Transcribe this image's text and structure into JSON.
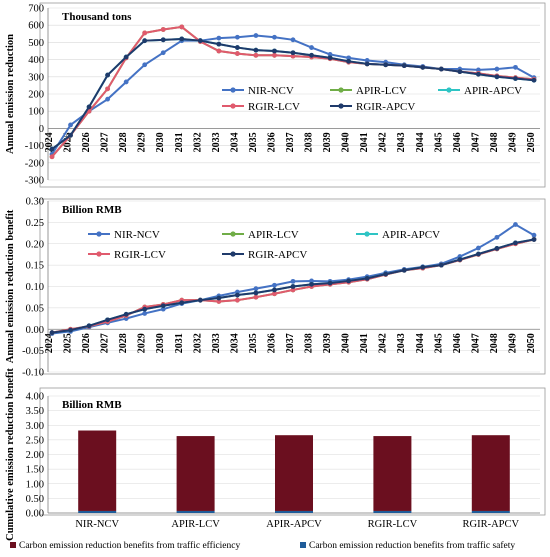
{
  "charts": [
    {
      "type": "line",
      "unit_label": "Thousand tons",
      "ylabel": "Annual emission reduction",
      "ylim": [
        -300,
        700
      ],
      "yticks": [
        -300,
        -200,
        -100,
        0,
        100,
        200,
        300,
        400,
        500,
        600,
        700
      ],
      "ytick_labels": [
        "-300",
        "-200",
        "-100",
        "0",
        "100",
        "200",
        "300",
        "400",
        "500",
        "600",
        "700"
      ],
      "x": [
        2024,
        2025,
        2026,
        2027,
        2028,
        2029,
        2030,
        2031,
        2032,
        2033,
        2034,
        2035,
        2036,
        2037,
        2038,
        2039,
        2040,
        2041,
        2042,
        2043,
        2044,
        2045,
        2046,
        2047,
        2048,
        2049,
        2050
      ],
      "x_labels": [
        "2024",
        "2025",
        "2026",
        "2027",
        "2028",
        "2029",
        "2030",
        "2031",
        "2032",
        "2033",
        "2034",
        "2035",
        "2036",
        "2037",
        "2038",
        "2039",
        "2040",
        "2041",
        "2042",
        "2043",
        "2044",
        "2045",
        "2046",
        "2047",
        "2048",
        "2049",
        "2050"
      ],
      "legend_layout": "two-rows-right",
      "series": [
        {
          "name": "NIR-NCV",
          "color": "#4472C4",
          "marker": "circle",
          "values": [
            -150,
            20,
            100,
            170,
            270,
            370,
            440,
            510,
            510,
            525,
            530,
            540,
            530,
            515,
            470,
            430,
            410,
            395,
            385,
            370,
            360,
            345,
            345,
            340,
            345,
            355,
            295
          ]
        },
        {
          "name": "APIR-LCV",
          "color": "#70AD47",
          "marker": "circle",
          "values": [
            -165,
            -40,
            100,
            230,
            410,
            555,
            575,
            590,
            505,
            450,
            435,
            425,
            425,
            420,
            415,
            405,
            385,
            375,
            370,
            365,
            355,
            345,
            330,
            320,
            305,
            295,
            285
          ]
        },
        {
          "name": "APIR-APCV",
          "color": "#2EC4C4",
          "marker": "circle",
          "values": [
            -120,
            -40,
            125,
            310,
            415,
            510,
            515,
            520,
            510,
            490,
            470,
            455,
            450,
            440,
            425,
            410,
            390,
            375,
            370,
            365,
            355,
            345,
            330,
            315,
            300,
            290,
            280
          ]
        },
        {
          "name": "RGIR-LCV",
          "color": "#E05A6D",
          "marker": "circle",
          "values": [
            -165,
            -40,
            100,
            230,
            410,
            555,
            575,
            590,
            505,
            450,
            435,
            425,
            425,
            420,
            415,
            405,
            385,
            375,
            370,
            365,
            355,
            345,
            330,
            320,
            305,
            295,
            285
          ]
        },
        {
          "name": "RGIR-APCV",
          "color": "#1F3A6B",
          "marker": "circle",
          "values": [
            -120,
            -40,
            125,
            310,
            415,
            510,
            515,
            520,
            510,
            490,
            470,
            455,
            450,
            440,
            425,
            410,
            390,
            375,
            370,
            365,
            355,
            345,
            330,
            315,
            300,
            290,
            280
          ]
        }
      ]
    },
    {
      "type": "line",
      "unit_label": "Billion RMB",
      "ylabel": "Annual emission reduction benefit",
      "ylim": [
        -0.1,
        0.3
      ],
      "yticks": [
        -0.1,
        -0.05,
        0,
        0.05,
        0.1,
        0.15,
        0.2,
        0.25,
        0.3
      ],
      "ytick_labels": [
        "-0.10",
        "-0.05",
        "0.00",
        "0.05",
        "0.10",
        "0.15",
        "0.20",
        "0.25",
        "0.30"
      ],
      "x": [
        2024,
        2025,
        2026,
        2027,
        2028,
        2029,
        2030,
        2031,
        2032,
        2033,
        2034,
        2035,
        2036,
        2037,
        2038,
        2039,
        2040,
        2041,
        2042,
        2043,
        2044,
        2045,
        2046,
        2047,
        2048,
        2049,
        2050
      ],
      "x_labels": [
        "2024",
        "2025",
        "2026",
        "2027",
        "2028",
        "2029",
        "2030",
        "2031",
        "2032",
        "2033",
        "2034",
        "2035",
        "2036",
        "2037",
        "2038",
        "2039",
        "2040",
        "2041",
        "2042",
        "2043",
        "2044",
        "2045",
        "2046",
        "2047",
        "2048",
        "2049",
        "2050"
      ],
      "legend_layout": "two-rows-left",
      "series": [
        {
          "name": "NIR-NCV",
          "color": "#4472C4",
          "marker": "circle",
          "values": [
            -0.01,
            -0.005,
            0.005,
            0.015,
            0.025,
            0.037,
            0.047,
            0.06,
            0.068,
            0.078,
            0.087,
            0.095,
            0.103,
            0.112,
            0.113,
            0.112,
            0.116,
            0.123,
            0.132,
            0.14,
            0.146,
            0.153,
            0.17,
            0.19,
            0.215,
            0.245,
            0.22
          ]
        },
        {
          "name": "APIR-LCV",
          "color": "#70AD47",
          "marker": "circle",
          "values": [
            -0.008,
            0.0,
            0.007,
            0.018,
            0.032,
            0.052,
            0.058,
            0.068,
            0.068,
            0.065,
            0.068,
            0.075,
            0.083,
            0.092,
            0.1,
            0.105,
            0.11,
            0.117,
            0.128,
            0.138,
            0.143,
            0.15,
            0.162,
            0.175,
            0.188,
            0.2,
            0.21
          ]
        },
        {
          "name": "APIR-APCV",
          "color": "#2EC4C4",
          "marker": "circle",
          "values": [
            -0.008,
            -0.002,
            0.008,
            0.022,
            0.035,
            0.047,
            0.055,
            0.062,
            0.068,
            0.073,
            0.08,
            0.085,
            0.092,
            0.1,
            0.105,
            0.108,
            0.113,
            0.119,
            0.129,
            0.138,
            0.145,
            0.15,
            0.163,
            0.176,
            0.189,
            0.202,
            0.21
          ]
        },
        {
          "name": "RGIR-LCV",
          "color": "#E05A6D",
          "marker": "circle",
          "values": [
            -0.008,
            0.0,
            0.007,
            0.018,
            0.032,
            0.052,
            0.058,
            0.068,
            0.068,
            0.065,
            0.068,
            0.075,
            0.083,
            0.092,
            0.1,
            0.105,
            0.11,
            0.117,
            0.128,
            0.138,
            0.143,
            0.15,
            0.162,
            0.175,
            0.188,
            0.2,
            0.21
          ]
        },
        {
          "name": "RGIR-APCV",
          "color": "#1F3A6B",
          "marker": "circle",
          "values": [
            -0.008,
            -0.002,
            0.008,
            0.022,
            0.035,
            0.047,
            0.055,
            0.062,
            0.068,
            0.073,
            0.08,
            0.085,
            0.092,
            0.1,
            0.105,
            0.108,
            0.113,
            0.119,
            0.129,
            0.138,
            0.145,
            0.15,
            0.163,
            0.176,
            0.189,
            0.202,
            0.21
          ]
        }
      ]
    },
    {
      "type": "bar",
      "stacked": true,
      "unit_label": "Billion RMB",
      "ylabel": "Cumulative emission reduction benefit",
      "ylim": [
        0,
        4
      ],
      "yticks": [
        0,
        0.5,
        1.0,
        1.5,
        2.0,
        2.5,
        3.0,
        3.5,
        4.0
      ],
      "ytick_labels": [
        "0.00",
        "0.50",
        "1.00",
        "1.50",
        "2.00",
        "2.50",
        "3.00",
        "3.50",
        "4.00"
      ],
      "categories": [
        "NIR-NCV",
        "APIR-LCV",
        "APIR-APCV",
        "RGIR-LCV",
        "RGIR-APCV"
      ],
      "series": [
        {
          "name": "Carbon emission reduction benefits from traffic safety",
          "color": "#1F5C99",
          "values": [
            0.07,
            0.07,
            0.07,
            0.07,
            0.07
          ]
        },
        {
          "name": "Carbon emission reduction benefits from traffic efficiency",
          "color": "#6B0F1F",
          "values": [
            2.75,
            2.56,
            2.59,
            2.56,
            2.59
          ]
        }
      ],
      "legend_order": [
        1,
        0
      ]
    }
  ]
}
